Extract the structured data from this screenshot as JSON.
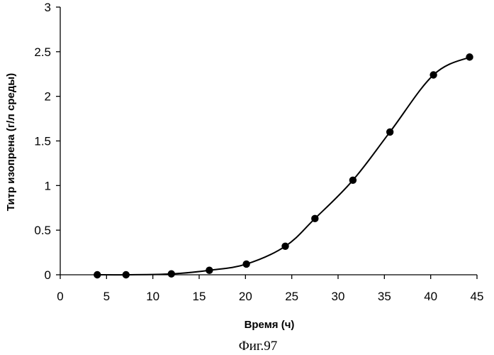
{
  "chart_data": {
    "type": "line",
    "title": "",
    "xlabel": "Время (ч)",
    "ylabel": "Титр изопрена (г/л среды)",
    "xlim": [
      0,
      45
    ],
    "ylim": [
      0,
      3
    ],
    "xticks": [
      0,
      5,
      10,
      15,
      20,
      25,
      30,
      35,
      40,
      45
    ],
    "xtick_labels": [
      "0",
      "5",
      "10",
      "15",
      "20",
      "25",
      "30",
      "35",
      "40",
      "45"
    ],
    "yticks": [
      0,
      0.5,
      1,
      1.5,
      2,
      2.5,
      3
    ],
    "ytick_labels": [
      "0",
      "0.5",
      "1",
      "1.5",
      "2",
      "2.5",
      "3"
    ],
    "grid": false,
    "legend": "none",
    "series": [
      {
        "name": "Титр изопрена",
        "color": "#000000",
        "marker": "circle",
        "smooth": true,
        "x": [
          4,
          7.1,
          12,
          16.1,
          20.1,
          24.3,
          27.5,
          31.6,
          35.6,
          40.3,
          44.2
        ],
        "y": [
          0.0,
          0.0,
          0.01,
          0.05,
          0.12,
          0.32,
          0.63,
          1.06,
          1.6,
          2.24,
          2.44
        ]
      }
    ]
  },
  "caption": "Фиг.97"
}
